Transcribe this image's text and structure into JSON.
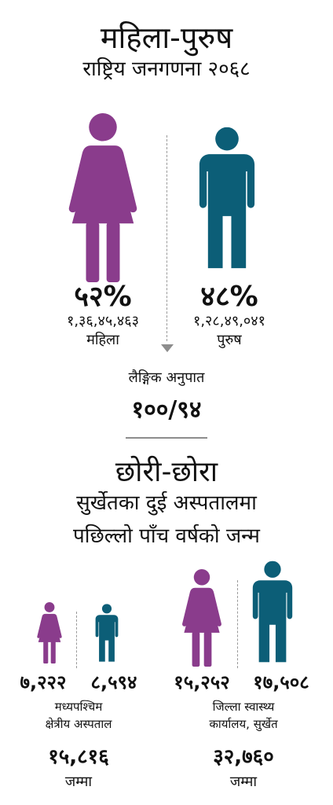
{
  "header": {
    "title": "महिला-पुरुष",
    "subtitle": "राष्ट्रिय जनगणना २०६८"
  },
  "census": {
    "female": {
      "percent": "५२%",
      "count": "१,३६,४५,४६३",
      "label": "महिला"
    },
    "male": {
      "percent": "४८%",
      "count": "१,२८,४९,०४१",
      "label": "पुरुष"
    },
    "ratio_label": "लैङ्गिक अनुपात",
    "ratio_value": "१००/९४"
  },
  "section2": {
    "title": "छोरी-छोरा",
    "line1": "सुर्खेतका दुई अस्पतालमा",
    "line2": "पछिल्लो पाँच वर्षको जन्म"
  },
  "hospitals": [
    {
      "girls": "७,२२२",
      "boys": "८,५९४",
      "name_line1": "मध्यपश्चिम",
      "name_line2": "क्षेत्रीय अस्पताल",
      "total": "१५,८१६",
      "total_label": "जम्मा"
    },
    {
      "girls": "१५,२५२",
      "boys": "१७,५०८",
      "name_line1": "जिल्ला स्वास्थ्य",
      "name_line2": "कार्यालय, सुर्खेत",
      "total": "३२,७६०",
      "total_label": "जम्मा"
    }
  ],
  "colors": {
    "female": "#8a3c8c",
    "male": "#0c5e77",
    "divider": "#8d8d8d"
  },
  "icons": [
    "woman-icon",
    "man-icon"
  ]
}
